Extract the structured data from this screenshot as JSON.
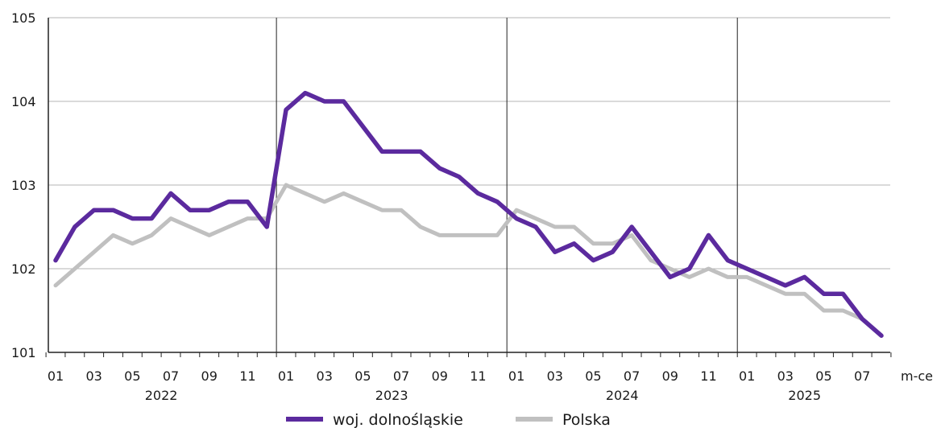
{
  "chart_data": {
    "type": "line",
    "ylim": [
      101,
      105
    ],
    "yticks": [
      "101",
      "102",
      "103",
      "104",
      "105"
    ],
    "xlabel": "m-ce",
    "grid": true,
    "legend_position": "bottom",
    "x": [
      "2022-01",
      "2022-02",
      "2022-03",
      "2022-04",
      "2022-05",
      "2022-06",
      "2022-07",
      "2022-08",
      "2022-09",
      "2022-10",
      "2022-11",
      "2022-12",
      "2023-01",
      "2023-02",
      "2023-03",
      "2023-04",
      "2023-05",
      "2023-06",
      "2023-07",
      "2023-08",
      "2023-09",
      "2023-10",
      "2023-11",
      "2023-12",
      "2024-01",
      "2024-02",
      "2024-03",
      "2024-04",
      "2024-05",
      "2024-06",
      "2024-07",
      "2024-08",
      "2024-09",
      "2024-10",
      "2024-11",
      "2024-12",
      "2025-01",
      "2025-02",
      "2025-03",
      "2025-04",
      "2025-05",
      "2025-06",
      "2025-07",
      "2025-08"
    ],
    "xtick_labels": [
      "01",
      "03",
      "05",
      "07",
      "09",
      "11",
      "01",
      "03",
      "05",
      "07",
      "09",
      "11",
      "01",
      "03",
      "05",
      "07",
      "09",
      "11",
      "01",
      "03",
      "05",
      "07"
    ],
    "years": [
      "2022",
      "2023",
      "2024",
      "2025"
    ],
    "series": [
      {
        "name": "woj. dolnośląskie",
        "color": "#5b2a9e",
        "values": [
          102.1,
          102.5,
          102.7,
          102.7,
          102.6,
          102.6,
          102.9,
          102.7,
          102.7,
          102.8,
          102.8,
          102.5,
          103.9,
          104.1,
          104.0,
          104.0,
          103.7,
          103.4,
          103.4,
          103.4,
          103.2,
          103.1,
          102.9,
          102.8,
          102.6,
          102.5,
          102.2,
          102.3,
          102.1,
          102.2,
          102.5,
          102.2,
          101.9,
          102.0,
          102.4,
          102.1,
          102.0,
          101.9,
          101.8,
          101.9,
          101.7,
          101.7,
          101.4,
          101.2
        ]
      },
      {
        "name": "Polska",
        "color": "#c0c0c0",
        "values": [
          101.8,
          102.0,
          102.2,
          102.4,
          102.3,
          102.4,
          102.6,
          102.5,
          102.4,
          102.5,
          102.6,
          102.6,
          103.0,
          102.9,
          102.8,
          102.9,
          102.8,
          102.7,
          102.7,
          102.5,
          102.4,
          102.4,
          102.4,
          102.4,
          102.7,
          102.6,
          102.5,
          102.5,
          102.3,
          102.3,
          102.4,
          102.1,
          102.0,
          101.9,
          102.0,
          101.9,
          101.9,
          101.8,
          101.7,
          101.7,
          101.5,
          101.5,
          101.4,
          101.2
        ]
      }
    ]
  }
}
